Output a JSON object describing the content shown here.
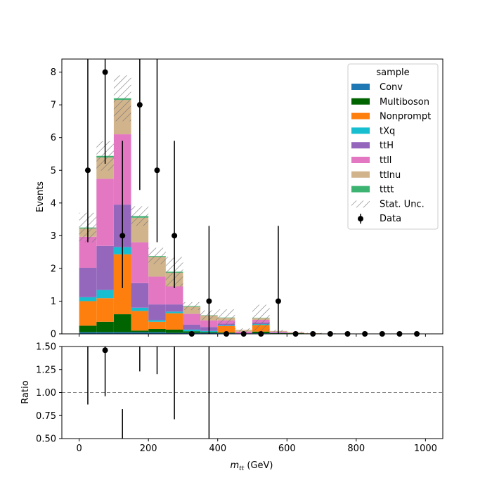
{
  "chart_data": [
    {
      "type": "stacked-bar-histogram",
      "xlabel": "m_tt (GeV)",
      "xlabel_main": "m",
      "xlabel_sub": "tt",
      "xlabel_unit": " (GeV)",
      "ylabel": "Events",
      "xlim": [
        -50,
        1050
      ],
      "ylim": [
        0,
        8.4
      ],
      "x_ticks": [
        0,
        200,
        400,
        600,
        800,
        1000
      ],
      "x_tick_labels": [
        "0",
        "200",
        "400",
        "600",
        "800",
        "1000"
      ],
      "y_ticks": [
        0,
        1,
        2,
        3,
        4,
        5,
        6,
        7,
        8
      ],
      "y_tick_labels": [
        "0",
        "1",
        "2",
        "3",
        "4",
        "5",
        "6",
        "7",
        "8"
      ],
      "bin_edges": [
        0,
        50,
        100,
        150,
        200,
        250,
        300,
        350,
        400,
        450,
        500,
        550,
        600,
        650,
        700,
        750,
        800,
        850,
        900,
        950,
        1000
      ],
      "legend_title": "sample",
      "legend_placement": "top-right",
      "series": [
        {
          "name": "Conv",
          "color": "#1f77b4",
          "values": [
            0.05,
            0.05,
            0.05,
            0.05,
            0.05,
            0.03,
            0.03,
            0.03,
            0.02,
            0.0,
            0.02,
            0.0,
            0.0,
            0.0,
            0.0,
            0.0,
            0.0,
            0.0,
            0.0,
            0.0
          ]
        },
        {
          "name": "Multiboson",
          "color": "#006400",
          "values": [
            0.2,
            0.32,
            0.55,
            0.05,
            0.1,
            0.1,
            0.05,
            0.03,
            0.02,
            0.0,
            0.05,
            0.02,
            0.02,
            0.01,
            0.0,
            0.0,
            0.0,
            0.0,
            0.0,
            0.0
          ]
        },
        {
          "name": "Nonprompt",
          "color": "#ff7f0e",
          "values": [
            0.75,
            0.72,
            1.83,
            0.6,
            0.22,
            0.5,
            0.0,
            0.0,
            0.2,
            0.0,
            0.2,
            0.0,
            0.0,
            0.0,
            0.0,
            0.0,
            0.0,
            0.0,
            0.0,
            0.0
          ]
        },
        {
          "name": "tXq",
          "color": "#17becf",
          "values": [
            0.12,
            0.25,
            0.22,
            0.1,
            0.05,
            0.05,
            0.05,
            0.03,
            0.02,
            0.0,
            0.03,
            0.0,
            0.0,
            0.0,
            0.0,
            0.0,
            0.0,
            0.0,
            0.0,
            0.0
          ]
        },
        {
          "name": "ttH",
          "color": "#9467bd",
          "values": [
            0.9,
            1.35,
            1.3,
            0.75,
            0.48,
            0.22,
            0.15,
            0.12,
            0.05,
            0.02,
            0.05,
            0.02,
            0.0,
            0.0,
            0.0,
            0.0,
            0.0,
            0.0,
            0.0,
            0.0
          ]
        },
        {
          "name": "ttll",
          "color": "#e377c2",
          "values": [
            0.95,
            2.05,
            2.15,
            1.25,
            0.85,
            0.55,
            0.33,
            0.2,
            0.1,
            0.05,
            0.08,
            0.02,
            0.01,
            0.0,
            0.0,
            0.0,
            0.0,
            0.0,
            0.0,
            0.0
          ]
        },
        {
          "name": "ttlnu",
          "color": "#d2b48c",
          "values": [
            0.25,
            0.65,
            1.05,
            0.75,
            0.6,
            0.42,
            0.22,
            0.15,
            0.08,
            0.05,
            0.05,
            0.03,
            0.02,
            0.01,
            0.01,
            0.0,
            0.0,
            0.0,
            0.0,
            0.0
          ]
        },
        {
          "name": "tttt",
          "color": "#3cb371",
          "values": [
            0.03,
            0.05,
            0.05,
            0.05,
            0.03,
            0.03,
            0.02,
            0.01,
            0.01,
            0.0,
            0.01,
            0.0,
            0.0,
            0.0,
            0.0,
            0.0,
            0.0,
            0.0,
            0.0,
            0.0
          ]
        }
      ],
      "stat_unc_label": "Stat. Unc.",
      "stat_unc": [
        0.45,
        0.45,
        0.7,
        0.3,
        0.25,
        0.45,
        0.12,
        0.15,
        0.25,
        0.05,
        0.4,
        0.03,
        0.02,
        0.01,
        0.01,
        0.0,
        0.0,
        0.0,
        0.0,
        0.0
      ],
      "data_label": "Data",
      "data": {
        "x": [
          25,
          75,
          125,
          175,
          225,
          275,
          325,
          375,
          425,
          475,
          525,
          575,
          625,
          675,
          725,
          775,
          825,
          875,
          925,
          975
        ],
        "y": [
          5,
          8,
          3,
          7,
          5,
          3,
          0,
          1,
          0,
          0,
          0,
          1,
          0,
          0,
          0,
          0,
          0,
          0,
          0,
          0
        ],
        "err_low": [
          2.2,
          2.8,
          1.6,
          2.6,
          2.2,
          1.6,
          0,
          1.0,
          0,
          0,
          0,
          1.0,
          0,
          0,
          0,
          0,
          0,
          0,
          0,
          0
        ],
        "err_high": [
          3.4,
          3.9,
          2.9,
          3.8,
          3.4,
          2.9,
          0,
          2.3,
          0,
          0,
          0,
          2.3,
          0,
          0,
          0,
          0,
          0,
          0,
          0,
          0
        ]
      }
    },
    {
      "type": "ratio",
      "xlabel": "m_tt (GeV)",
      "ylabel": "Ratio",
      "ylim": [
        0.5,
        1.5
      ],
      "y_ticks": [
        0.5,
        0.75,
        1.0,
        1.25,
        1.5
      ],
      "y_tick_labels": [
        "0.50",
        "0.75",
        "1.00",
        "1.25",
        "1.50"
      ],
      "reference_line": 1.0,
      "points": [
        {
          "x": 25,
          "y": 1.55,
          "err_low": 0.68,
          "err_high": 1.0
        },
        {
          "x": 75,
          "y": 1.46,
          "err_low": 0.5,
          "err_high": 0.7
        },
        {
          "x": 125,
          "y": 0.38,
          "err_low": 0.2,
          "err_high": 0.44
        },
        {
          "x": 175,
          "y": 1.8,
          "err_low": 0.57,
          "err_high": 1.0
        },
        {
          "x": 225,
          "y": 2.1,
          "err_low": 0.9,
          "err_high": 1.4
        },
        {
          "x": 275,
          "y": 1.56,
          "err_low": 0.85,
          "err_high": 1.5
        },
        {
          "x": 375,
          "y": 1.9,
          "err_low": 1.85,
          "err_high": 4.0
        }
      ]
    }
  ]
}
